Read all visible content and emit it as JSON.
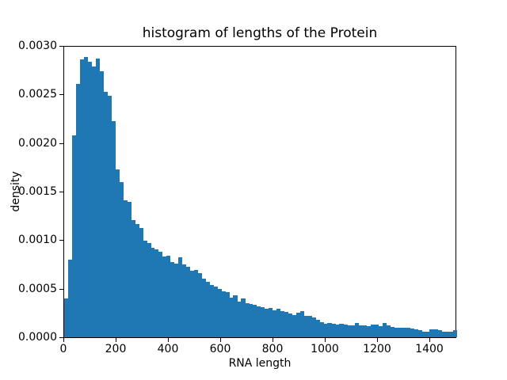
{
  "chart_data": {
    "type": "bar",
    "subtype": "histogram",
    "title": "histogram of lengths of the Protein",
    "xlabel": "RNA length",
    "ylabel": "density",
    "xlim": [
      0,
      1500
    ],
    "ylim": [
      0,
      0.003
    ],
    "grid": false,
    "legend": "none",
    "bar_color": "#1f77b4",
    "axes_color": "#000000",
    "background_color": "#ffffff",
    "xticks": [
      0,
      200,
      400,
      600,
      800,
      1000,
      1200,
      1400
    ],
    "xtick_labels": [
      "0",
      "200",
      "400",
      "600",
      "800",
      "1000",
      "1200",
      "1400"
    ],
    "yticks": [
      0.0,
      0.0005,
      0.001,
      0.0015,
      0.002,
      0.0025,
      0.003
    ],
    "ytick_labels": [
      "0.0000",
      "0.0005",
      "0.0010",
      "0.0015",
      "0.0020",
      "0.0025",
      "0.0030"
    ],
    "bin_start": 0,
    "bin_width": 15,
    "values": [
      0.0004,
      0.0008,
      0.00207,
      0.0026,
      0.00285,
      0.00288,
      0.00283,
      0.00278,
      0.00286,
      0.00273,
      0.00252,
      0.00248,
      0.00222,
      0.00172,
      0.00159,
      0.00141,
      0.00139,
      0.0012,
      0.00116,
      0.00112,
      0.00099,
      0.00097,
      0.00092,
      0.0009,
      0.00088,
      0.00083,
      0.00084,
      0.00077,
      0.00076,
      0.00082,
      0.00075,
      0.00072,
      0.00068,
      0.00069,
      0.00066,
      0.0006,
      0.00057,
      0.00054,
      0.00052,
      0.0005,
      0.00047,
      0.00046,
      0.00041,
      0.00043,
      0.00037,
      0.0004,
      0.00035,
      0.00034,
      0.00033,
      0.00032,
      0.00031,
      0.00029,
      0.0003,
      0.00028,
      0.00029,
      0.00027,
      0.00026,
      0.00024,
      0.00023,
      0.00025,
      0.00027,
      0.00022,
      0.00022,
      0.0002,
      0.00018,
      0.000155,
      0.00014,
      0.00015,
      0.00014,
      0.00013,
      0.00014,
      0.00013,
      0.000125,
      0.000125,
      0.000145,
      0.000125,
      0.00012,
      0.000115,
      0.00013,
      0.000128,
      0.000115,
      0.000145,
      0.00012,
      0.000105,
      0.0001,
      0.0001,
      0.0001,
      9.5e-05,
      9e-05,
      8.5e-05,
      7e-05,
      6e-05,
      6e-05,
      8e-05,
      8.5e-05,
      7e-05,
      6e-05,
      6e-05,
      6e-05,
      7e-05
    ]
  }
}
